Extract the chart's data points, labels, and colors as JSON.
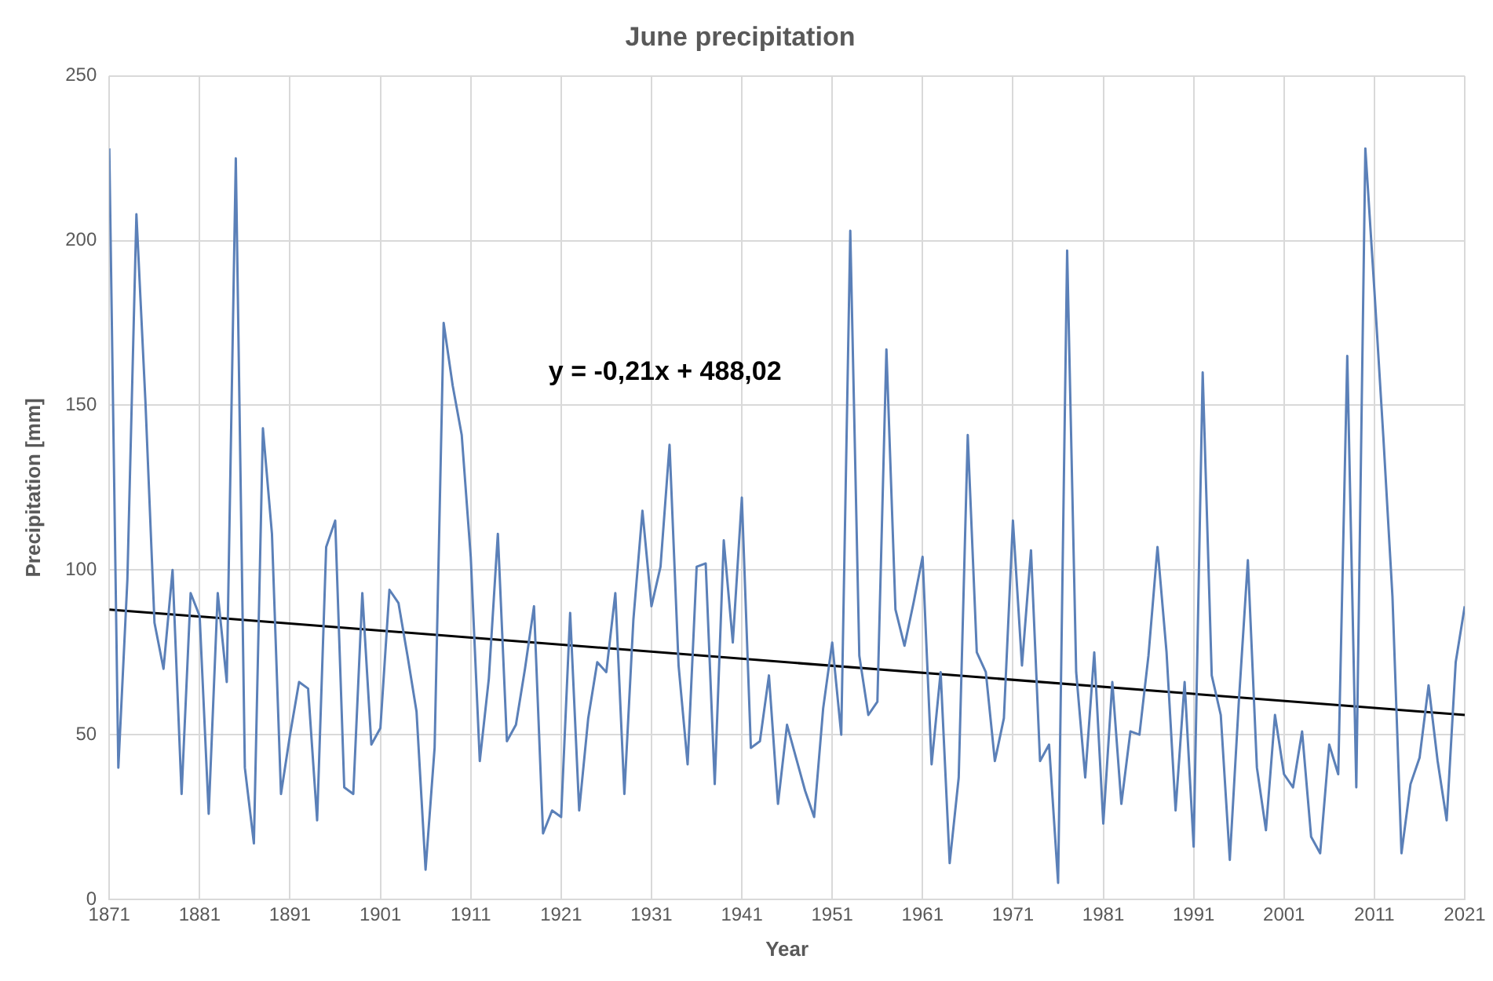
{
  "chart_data": {
    "type": "line",
    "title": "June precipitation",
    "xlabel": "Year",
    "ylabel": "Precipitation [mm]",
    "annotations": [
      "y = -0,21x + 488,02"
    ],
    "xlim": [
      1871,
      2021
    ],
    "xticks": [
      1871,
      1881,
      1891,
      1901,
      1911,
      1921,
      1931,
      1941,
      1951,
      1961,
      1971,
      1981,
      1991,
      2001,
      2011,
      2021
    ],
    "ylim": [
      0,
      250
    ],
    "yticks": [
      0,
      50,
      100,
      150,
      200,
      250
    ],
    "grid": true,
    "legend": false,
    "marker": "none",
    "line_style": "solid",
    "series": [
      {
        "color": "#5b80b8",
        "x": [
          1871,
          1872,
          1873,
          1874,
          1875,
          1876,
          1877,
          1878,
          1879,
          1880,
          1881,
          1882,
          1883,
          1884,
          1885,
          1886,
          1887,
          1888,
          1889,
          1890,
          1891,
          1892,
          1893,
          1894,
          1895,
          1896,
          1897,
          1898,
          1899,
          1900,
          1901,
          1902,
          1903,
          1904,
          1905,
          1906,
          1907,
          1908,
          1909,
          1910,
          1911,
          1912,
          1913,
          1914,
          1915,
          1916,
          1917,
          1918,
          1919,
          1920,
          1921,
          1922,
          1923,
          1924,
          1925,
          1926,
          1927,
          1928,
          1929,
          1930,
          1931,
          1932,
          1933,
          1934,
          1935,
          1936,
          1937,
          1938,
          1939,
          1940,
          1941,
          1942,
          1943,
          1944,
          1945,
          1946,
          1947,
          1948,
          1949,
          1950,
          1951,
          1952,
          1953,
          1954,
          1955,
          1956,
          1957,
          1958,
          1959,
          1960,
          1961,
          1962,
          1963,
          1964,
          1965,
          1966,
          1967,
          1968,
          1969,
          1970,
          1971,
          1972,
          1973,
          1974,
          1975,
          1976,
          1977,
          1978,
          1979,
          1980,
          1981,
          1982,
          1983,
          1984,
          1985,
          1986,
          1987,
          1988,
          1989,
          1990,
          1991,
          1992,
          1993,
          1994,
          1995,
          1996,
          1997,
          1998,
          1999,
          2000,
          2001,
          2002,
          2003,
          2004,
          2005,
          2006,
          2007,
          2008,
          2009,
          2010,
          2011,
          2012,
          2013,
          2014,
          2015,
          2016,
          2017,
          2018,
          2019,
          2020,
          2021
        ],
        "values": [
          228,
          40,
          97,
          208,
          151,
          84,
          70,
          100,
          32,
          93,
          86,
          26,
          93,
          66,
          225,
          40,
          17,
          143,
          111,
          32,
          50,
          66,
          64,
          24,
          107,
          115,
          34,
          32,
          93,
          47,
          52,
          94,
          90,
          74,
          57,
          9,
          46,
          175,
          156,
          141,
          104,
          42,
          67,
          111,
          48,
          53,
          70,
          89,
          20,
          27,
          25,
          87,
          27,
          55,
          72,
          69,
          93,
          32,
          85,
          118,
          89,
          101,
          138,
          71,
          41,
          101,
          102,
          35,
          109,
          78,
          122,
          46,
          48,
          68,
          29,
          53,
          43,
          33,
          25,
          58,
          78,
          50,
          203,
          74,
          56,
          60,
          167,
          88,
          77,
          90,
          104,
          41,
          69,
          11,
          37,
          141,
          75,
          69,
          42,
          55,
          115,
          71,
          106,
          42,
          47,
          5,
          197,
          69,
          37,
          75,
          23,
          66,
          29,
          51,
          50,
          74,
          107,
          75,
          27,
          66,
          16,
          160,
          68,
          56,
          12,
          60,
          103,
          40,
          21,
          56,
          38,
          34,
          51,
          19,
          14,
          47,
          38,
          165,
          34,
          228,
          185,
          140,
          92,
          14,
          35,
          43,
          65,
          42,
          24,
          72,
          89
        ]
      },
      {
        "color": "#000000",
        "x": [
          1871,
          2021
        ],
        "values": [
          88,
          56
        ]
      }
    ]
  }
}
